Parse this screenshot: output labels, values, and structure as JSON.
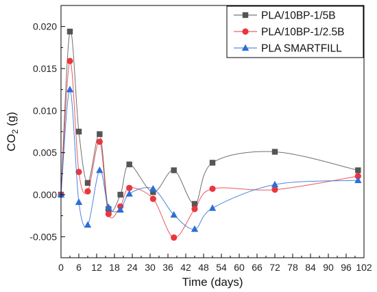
{
  "chart_data": {
    "type": "line",
    "xlabel": "Time (days)",
    "ylabel_main": "CO",
    "ylabel_sub": "2",
    "ylabel_unit": " (g)",
    "xlim": [
      0,
      102
    ],
    "ylim": [
      -0.0075,
      0.0225
    ],
    "x_ticks": [
      0,
      6,
      12,
      18,
      24,
      30,
      36,
      42,
      48,
      54,
      60,
      66,
      72,
      78,
      84,
      90,
      96,
      102
    ],
    "x_tick_labels": [
      "0",
      "6",
      "12",
      "18",
      "24",
      "30",
      "36",
      "42",
      "48",
      "54",
      "60",
      "66",
      "72",
      "78",
      "84",
      "90",
      "96",
      "102"
    ],
    "y_ticks": [
      -0.005,
      0.0,
      0.005,
      0.01,
      0.015,
      0.02
    ],
    "y_tick_labels": [
      "-0.005",
      "0.000",
      "0.005",
      "0.010",
      "0.015",
      "0.020"
    ],
    "grid": false,
    "legend_position": "top-right",
    "series": [
      {
        "name": "PLA/10BP-1/5B",
        "marker": "square",
        "color": "#555555",
        "x": [
          0,
          3,
          6,
          9,
          13,
          16,
          20,
          23,
          31,
          38,
          45,
          51,
          72,
          100
        ],
        "y": [
          0.0,
          0.0194,
          0.0075,
          0.0014,
          0.0072,
          -0.0017,
          0.0,
          0.0036,
          0.0003,
          0.0029,
          -0.0011,
          0.0038,
          0.0051,
          0.0029
        ]
      },
      {
        "name": "PLA/10BP-1/2.5B",
        "marker": "circle",
        "color": "#e8383d",
        "x": [
          0,
          3,
          6,
          9,
          13,
          16,
          20,
          23,
          31,
          38,
          45,
          51,
          72,
          100
        ],
        "y": [
          0.0,
          0.0159,
          0.0027,
          0.0004,
          0.0063,
          -0.0023,
          -0.0014,
          0.0008,
          -0.0005,
          -0.0051,
          -0.0017,
          0.0007,
          0.0006,
          0.0022
        ]
      },
      {
        "name": "PLA SMARTFILL",
        "marker": "triangle",
        "color": "#2a6fd6",
        "x": [
          0,
          3,
          6,
          9,
          13,
          16,
          20,
          23,
          31,
          38,
          45,
          51,
          72,
          100
        ],
        "y": [
          0.0,
          0.0125,
          -0.0009,
          -0.0036,
          0.0029,
          -0.0015,
          -0.0018,
          0.0001,
          0.0007,
          -0.0024,
          -0.0041,
          -0.0016,
          0.0012,
          0.0017
        ]
      }
    ]
  }
}
